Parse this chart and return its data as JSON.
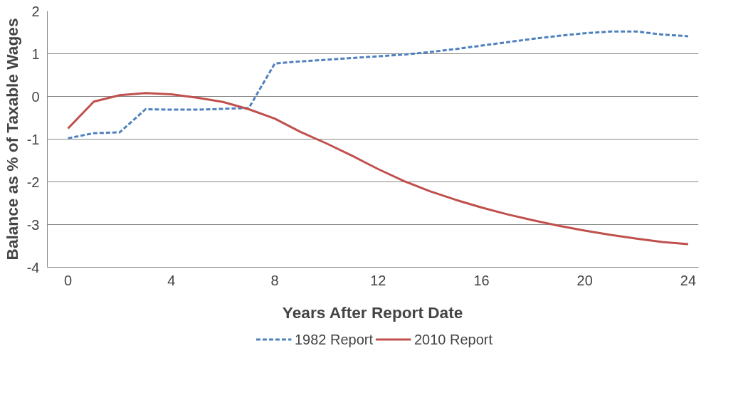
{
  "chart_data": {
    "type": "line",
    "xlabel": "Years After Report Date",
    "ylabel": "Balance as % of Taxable Wages",
    "x": [
      0,
      1,
      2,
      3,
      4,
      5,
      6,
      7,
      8,
      9,
      10,
      11,
      12,
      13,
      14,
      15,
      16,
      17,
      18,
      19,
      20,
      21,
      22,
      23,
      24
    ],
    "series": [
      {
        "name": "1982 Report",
        "color": "#4f81bd",
        "line_style": "dashed",
        "values": [
          -0.98,
          -0.86,
          -0.84,
          -0.3,
          -0.31,
          -0.31,
          -0.29,
          -0.27,
          0.77,
          0.82,
          0.86,
          0.9,
          0.94,
          0.98,
          1.04,
          1.11,
          1.19,
          1.27,
          1.35,
          1.42,
          1.48,
          1.52,
          1.52,
          1.45,
          1.41
        ]
      },
      {
        "name": "2010 Report",
        "color": "#c0504d",
        "line_style": "solid",
        "values": [
          -0.75,
          -0.12,
          0.03,
          0.08,
          0.05,
          -0.03,
          -0.13,
          -0.3,
          -0.52,
          -0.83,
          -1.1,
          -1.39,
          -1.7,
          -1.98,
          -2.22,
          -2.42,
          -2.6,
          -2.76,
          -2.9,
          -3.03,
          -3.14,
          -3.24,
          -3.33,
          -3.41,
          -3.46
        ]
      }
    ],
    "xlim": [
      -0.8,
      24.4
    ],
    "xticks": [
      0,
      4,
      8,
      12,
      16,
      20,
      24
    ],
    "ylim": [
      -4,
      2
    ],
    "yticks": [
      -4,
      -3,
      -2,
      -1,
      0,
      1,
      2
    ],
    "grid": "y",
    "legend": "bottom",
    "marker": "none"
  }
}
